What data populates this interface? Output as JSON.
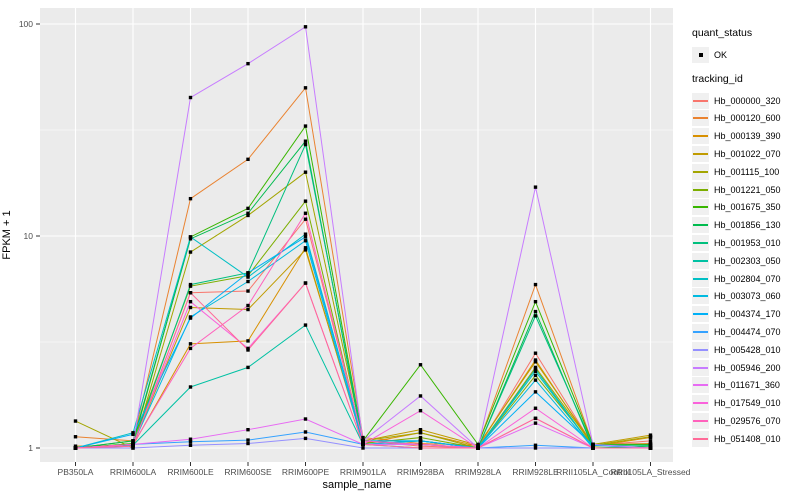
{
  "chart_data": {
    "type": "line",
    "title": "",
    "xlabel": "sample_name",
    "ylabel": "FPKM + 1",
    "y_scale": "log10",
    "y_ticks": [
      1,
      10,
      100
    ],
    "y_tick_labels": [
      "1",
      "10",
      "100"
    ],
    "y_minor_gridlines": [
      3.1623,
      31.6228
    ],
    "ylim": [
      0.87,
      119
    ],
    "grid": "on",
    "legend_position": "right",
    "x_categories": [
      "PB350LA",
      "RRIM600LA",
      "RRIM600LE",
      "RRIM600SE",
      "RRIM600PE",
      "RRIM901LA",
      "RRIM928BA",
      "RRIM928LA",
      "RRIM928LE",
      "RRII105LA_Control",
      "RRII105LA_Stressed"
    ],
    "legend": {
      "quant_title": "quant_status",
      "quant_items": [
        {
          "label": "OK",
          "symbol": "black-point"
        }
      ],
      "tracking_title": "tracking_id"
    },
    "series": [
      {
        "name": "Hb_000000_320",
        "color": "#F8766D",
        "values": [
          1.0,
          1.02,
          5.4,
          5.5,
          12.0,
          1.08,
          1.02,
          1.0,
          2.8,
          1.03,
          1.08
        ]
      },
      {
        "name": "Hb_000120_600",
        "color": "#EA8331",
        "values": [
          1.13,
          1.08,
          15.0,
          23.0,
          50.0,
          1.12,
          1.05,
          1.03,
          5.9,
          1.04,
          1.05
        ]
      },
      {
        "name": "Hb_000139_390",
        "color": "#D89000",
        "values": [
          1.02,
          1.03,
          3.1,
          3.2,
          8.8,
          1.05,
          1.18,
          1.02,
          2.6,
          1.02,
          1.12
        ]
      },
      {
        "name": "Hb_001022_070",
        "color": "#C09B00",
        "values": [
          1.0,
          1.04,
          4.6,
          4.5,
          8.6,
          1.08,
          1.22,
          1.03,
          2.55,
          1.04,
          1.15
        ]
      },
      {
        "name": "Hb_001115_100",
        "color": "#A3A500",
        "values": [
          1.34,
          1.0,
          8.4,
          12.5,
          20.0,
          1.08,
          1.18,
          1.0,
          2.4,
          1.03,
          1.13
        ]
      },
      {
        "name": "Hb_001221_050",
        "color": "#7CAE00",
        "values": [
          1.0,
          1.08,
          5.8,
          6.5,
          14.6,
          1.05,
          1.12,
          1.0,
          2.2,
          1.02,
          1.04
        ]
      },
      {
        "name": "Hb_001675_350",
        "color": "#39B600",
        "values": [
          1.0,
          1.05,
          9.9,
          13.5,
          33.0,
          1.08,
          2.47,
          1.04,
          4.9,
          1.04,
          1.04
        ]
      },
      {
        "name": "Hb_001856_130",
        "color": "#00BB4E",
        "values": [
          1.0,
          1.08,
          9.7,
          12.8,
          28.0,
          1.04,
          1.08,
          1.0,
          4.4,
          1.0,
          1.02
        ]
      },
      {
        "name": "Hb_001953_010",
        "color": "#00BF7D",
        "values": [
          1.0,
          1.04,
          5.9,
          6.7,
          27.0,
          1.08,
          1.08,
          1.0,
          4.2,
          1.03,
          1.03
        ]
      },
      {
        "name": "Hb_002303_050",
        "color": "#00C1A3",
        "values": [
          1.0,
          1.03,
          1.94,
          2.4,
          3.8,
          1.04,
          1.0,
          1.0,
          2.36,
          1.0,
          1.0
        ]
      },
      {
        "name": "Hb_002804_070",
        "color": "#00BFC4",
        "values": [
          1.0,
          1.18,
          9.9,
          6.4,
          10.2,
          1.08,
          1.04,
          1.0,
          2.3,
          1.0,
          1.0
        ]
      },
      {
        "name": "Hb_003073_060",
        "color": "#00BAE0",
        "values": [
          1.0,
          1.04,
          4.15,
          6.1,
          9.5,
          1.04,
          1.08,
          1.0,
          2.09,
          1.0,
          1.0
        ]
      },
      {
        "name": "Hb_004374_170",
        "color": "#00B0F6",
        "values": [
          1.0,
          1.16,
          4.1,
          6.7,
          9.9,
          1.08,
          1.08,
          1.0,
          1.84,
          1.03,
          1.0
        ]
      },
      {
        "name": "Hb_004474_070",
        "color": "#35A2FF",
        "values": [
          1.0,
          1.04,
          1.07,
          1.09,
          1.19,
          1.04,
          1.04,
          1.0,
          1.03,
          1.0,
          1.0
        ]
      },
      {
        "name": "Hb_005428_010",
        "color": "#9590FF",
        "values": [
          1.0,
          1.0,
          1.03,
          1.05,
          1.11,
          1.0,
          1.0,
          1.0,
          1.0,
          1.0,
          1.0
        ]
      },
      {
        "name": "Hb_005946_200",
        "color": "#C77CFF",
        "values": [
          1.0,
          1.04,
          45.0,
          65.0,
          97.0,
          1.08,
          1.76,
          1.0,
          17.0,
          1.04,
          1.0
        ]
      },
      {
        "name": "Hb_011671_360",
        "color": "#E76BF3",
        "values": [
          1.0,
          1.04,
          1.1,
          1.22,
          1.37,
          1.04,
          1.04,
          1.0,
          1.31,
          1.0,
          1.0
        ]
      },
      {
        "name": "Hb_017549_010",
        "color": "#FA62DB",
        "values": [
          1.0,
          1.04,
          4.9,
          2.95,
          6.0,
          1.04,
          1.5,
          1.0,
          1.54,
          1.0,
          1.0
        ]
      },
      {
        "name": "Hb_029576_070",
        "color": "#FF62BC",
        "values": [
          1.0,
          1.04,
          2.95,
          4.7,
          12.8,
          1.08,
          1.04,
          1.0,
          1.38,
          1.0,
          1.0
        ]
      },
      {
        "name": "Hb_051408_010",
        "color": "#FF6A98",
        "values": [
          1.0,
          1.02,
          5.4,
          2.9,
          6.0,
          1.04,
          1.0,
          1.0,
          1.38,
          1.0,
          1.0
        ]
      }
    ],
    "style": {
      "panel_bg": "#EBEBEB",
      "grid_color": "#FFFFFF",
      "tick_text_color": "#4D4D4D",
      "tick_mark_color": "#333333",
      "point_color": "#000000",
      "legend_key_bg": "#F0F0F0"
    }
  }
}
